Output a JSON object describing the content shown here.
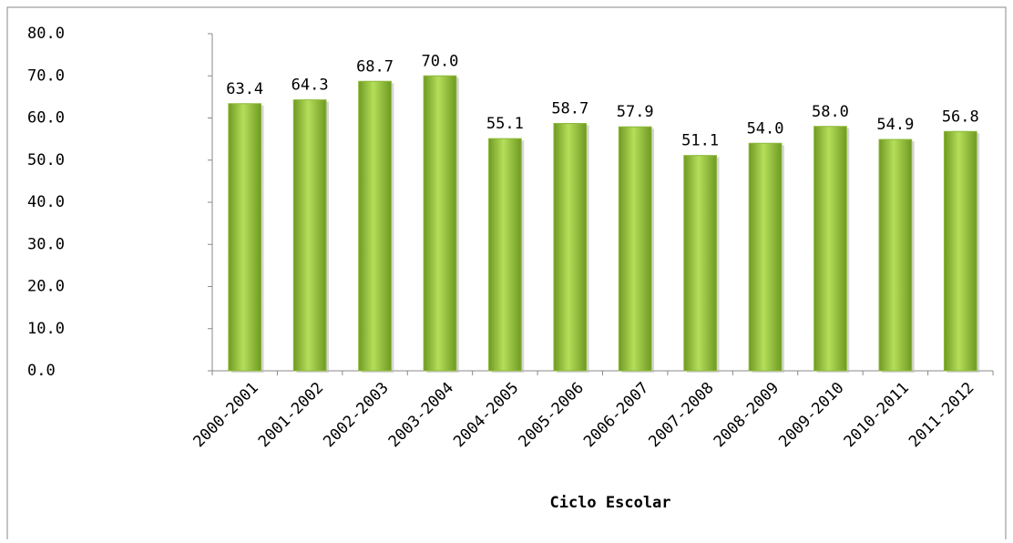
{
  "chart_data": {
    "type": "bar",
    "x_label": "Ciclo Escolar",
    "categories": [
      "2000-2001",
      "2001-2002",
      "2002-2003",
      "2003-2004",
      "2004-2005",
      "2005-2006",
      "2006-2007",
      "2007-2008",
      "2008-2009",
      "2009-2010",
      "2010-2011",
      "2011-2012"
    ],
    "values": [
      63.4,
      64.3,
      68.7,
      70.0,
      55.1,
      58.7,
      57.9,
      51.1,
      54.0,
      58.0,
      54.9,
      56.8
    ],
    "value_labels": [
      "63.4",
      "64.3",
      "68.7",
      "70.0",
      "55.1",
      "58.7",
      "57.9",
      "51.1",
      "54.0",
      "58.0",
      "54.9",
      "56.8"
    ],
    "color": "#8db83a",
    "ylim": [
      0,
      80
    ],
    "yticks": [
      {
        "value": 0,
        "label": "0.0"
      },
      {
        "value": 10,
        "label": "10.0"
      },
      {
        "value": 20,
        "label": "20.0"
      },
      {
        "value": 30,
        "label": "30.0"
      },
      {
        "value": 40,
        "label": "40.0"
      },
      {
        "value": 50,
        "label": "50.0"
      },
      {
        "value": 60,
        "label": "60.0"
      },
      {
        "value": 70,
        "label": "70.0"
      },
      {
        "value": 80,
        "label": "80.0"
      }
    ],
    "grid": false
  }
}
